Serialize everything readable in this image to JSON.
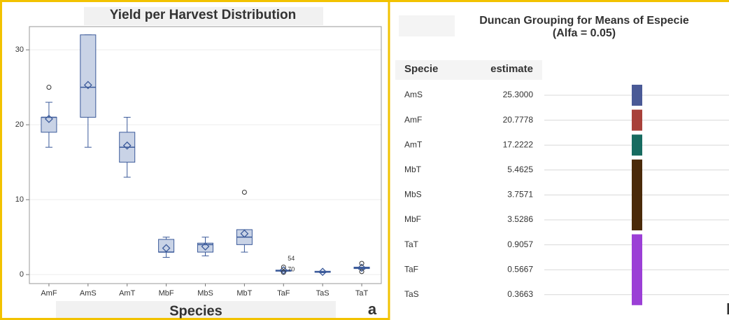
{
  "chart_data": {
    "type": "box",
    "title": "Yield per Harvest Distribution",
    "x_label": "Species",
    "panel_label": "a",
    "categories": [
      "AmF",
      "AmS",
      "AmT",
      "MbF",
      "MbS",
      "MbT",
      "TaF",
      "TaS",
      "TaT"
    ],
    "boxes": [
      {
        "low": 17,
        "q1": 19,
        "median": 21,
        "q3": 21,
        "high": 23,
        "mean": 20.7778,
        "outliers": [
          25
        ]
      },
      {
        "low": 17,
        "q1": 21,
        "median": 25,
        "q3": 32,
        "high": 32,
        "mean": 25.3,
        "outliers": []
      },
      {
        "low": 13,
        "q1": 15,
        "median": 17,
        "q3": 19,
        "high": 21,
        "mean": 17.2222,
        "outliers": []
      },
      {
        "low": 2.3,
        "q1": 3,
        "median": 3,
        "q3": 4.7,
        "high": 5,
        "mean": 3.5286,
        "outliers": []
      },
      {
        "low": 2.5,
        "q1": 3,
        "median": 4,
        "q3": 4.2,
        "high": 5,
        "mean": 3.7571,
        "outliers": []
      },
      {
        "low": 3,
        "q1": 4,
        "median": 5,
        "q3": 6,
        "high": 6,
        "mean": 5.4625,
        "outliers": [
          11
        ]
      },
      {
        "low": 0.4,
        "q1": 0.45,
        "median": 0.5,
        "q3": 0.6,
        "high": 0.6,
        "mean": 0.5667,
        "outliers": [
          1.0,
          0.3
        ],
        "outlier_labels": [
          "54",
          "70"
        ]
      },
      {
        "low": 0.25,
        "q1": 0.3,
        "median": 0.35,
        "q3": 0.45,
        "high": 0.45,
        "mean": 0.3663,
        "outliers": []
      },
      {
        "low": 0.7,
        "q1": 0.8,
        "median": 0.9,
        "q3": 1.0,
        "high": 1.0,
        "mean": 0.9057,
        "outliers": [
          1.5,
          0.4
        ]
      }
    ],
    "box_color": "#c9d3e6",
    "line_color": "#3b5a9a",
    "ylim": [
      -1.2,
      33.1
    ],
    "yticks": [
      0,
      10,
      20,
      30
    ],
    "grid": true
  },
  "duncan": {
    "title": "Duncan Grouping for Means of Especie",
    "subtitle": "(Alfa = 0.05)",
    "panel_label": "b",
    "columns": [
      "Specie",
      "estimate"
    ],
    "rows": [
      [
        "AmS",
        "25.3000"
      ],
      [
        "AmF",
        "20.7778"
      ],
      [
        "AmT",
        "17.2222"
      ],
      [
        "MbT",
        "5.4625"
      ],
      [
        "MbS",
        "3.7571"
      ],
      [
        "MbF",
        "3.5286"
      ],
      [
        "TaT",
        "0.9057"
      ],
      [
        "TaF",
        "0.5667"
      ],
      [
        "TaS",
        "0.3663"
      ]
    ],
    "groups": [
      {
        "members": [
          "AmS"
        ],
        "color": "#4a5a96"
      },
      {
        "members": [
          "AmF"
        ],
        "color": "#a8413a"
      },
      {
        "members": [
          "AmT"
        ],
        "color": "#176b60"
      },
      {
        "members": [
          "MbT",
          "MbS",
          "MbF"
        ],
        "color": "#4a2a0a"
      },
      {
        "members": [
          "TaT",
          "TaF",
          "TaS"
        ],
        "color": "#9b3fd6"
      }
    ]
  }
}
